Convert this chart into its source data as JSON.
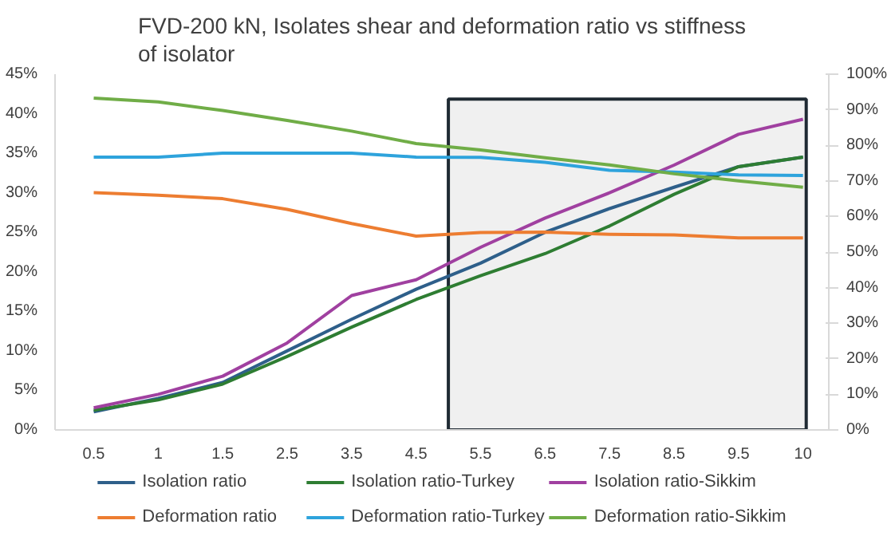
{
  "chart_data": {
    "type": "line",
    "title": "FVD-200 kN, Isolates shear and deformation ratio vs stiffness\nof isolator",
    "categories": [
      "0.5",
      "1",
      "1.5",
      "2.5",
      "3.5",
      "4.5",
      "5.5",
      "6.5",
      "7.5",
      "8.5",
      "9.5",
      "10"
    ],
    "series": [
      {
        "name": "Isolation ratio",
        "color": "#2e5f8a",
        "values": [
          2.3,
          4,
          6,
          10,
          14,
          17.8,
          21.1,
          25,
          28,
          30.7,
          33.3,
          34.5
        ]
      },
      {
        "name": "Isolation ratio-Turkey",
        "color": "#2e7d32",
        "values": [
          2.5,
          3.8,
          5.8,
          9.3,
          13,
          16.5,
          19.5,
          22.3,
          25.8,
          29.8,
          33.3,
          34.5
        ]
      },
      {
        "name": "Isolation ratio-Sikkim",
        "color": "#a040a0",
        "values": [
          2.8,
          4.5,
          6.8,
          11,
          17,
          19,
          23.1,
          26.8,
          30,
          33.5,
          37.4,
          39.3
        ]
      },
      {
        "name": "Deformation ratio",
        "color": "#ed7d31",
        "axis": "y2",
        "values": [
          66.7,
          66,
          65,
          62,
          58,
          54.5,
          55.5,
          55.6,
          55,
          54.8,
          54,
          54
        ]
      },
      {
        "name": "Deformation ratio-Turkey",
        "color": "#2ea3dc",
        "axis": "y2",
        "values": [
          76.7,
          76.7,
          77.8,
          77.8,
          77.8,
          76.7,
          76.6,
          75.2,
          73,
          72.5,
          71.7,
          71.5
        ]
      },
      {
        "name": "Deformation ratio-Sikkim",
        "color": "#70ad47",
        "axis": "y2",
        "values": [
          93.3,
          92.2,
          89.8,
          87,
          84,
          80.5,
          78.7,
          76.5,
          74.5,
          72,
          70,
          68.2
        ]
      }
    ],
    "ylim": [
      0,
      45
    ],
    "yticks": [
      {
        "value": 0,
        "label": "0%"
      },
      {
        "value": 5,
        "label": "5%"
      },
      {
        "value": 10,
        "label": "10%"
      },
      {
        "value": 15,
        "label": "15%"
      },
      {
        "value": 20,
        "label": "20%"
      },
      {
        "value": 25,
        "label": "25%"
      },
      {
        "value": 30,
        "label": "30%"
      },
      {
        "value": 35,
        "label": "35%"
      },
      {
        "value": 40,
        "label": "40%"
      },
      {
        "value": 45,
        "label": "45%"
      }
    ],
    "y2lim": [
      0,
      100
    ],
    "y2ticks": [
      {
        "value": 0,
        "label": "0%"
      },
      {
        "value": 10,
        "label": "10%"
      },
      {
        "value": 20,
        "label": "20%"
      },
      {
        "value": 30,
        "label": "30%"
      },
      {
        "value": 40,
        "label": "40%"
      },
      {
        "value": 50,
        "label": "50%"
      },
      {
        "value": 60,
        "label": "60%"
      },
      {
        "value": 70,
        "label": "70%"
      },
      {
        "value": 80,
        "label": "80%"
      },
      {
        "value": 90,
        "label": "90%"
      },
      {
        "value": 100,
        "label": "100%"
      }
    ],
    "bands": [
      {
        "axis": "x",
        "from": "5.5",
        "to": "10",
        "color": "#f0f0f0"
      }
    ],
    "legend": "bottom",
    "grid": false,
    "marker": "none",
    "line_style": "solid"
  }
}
